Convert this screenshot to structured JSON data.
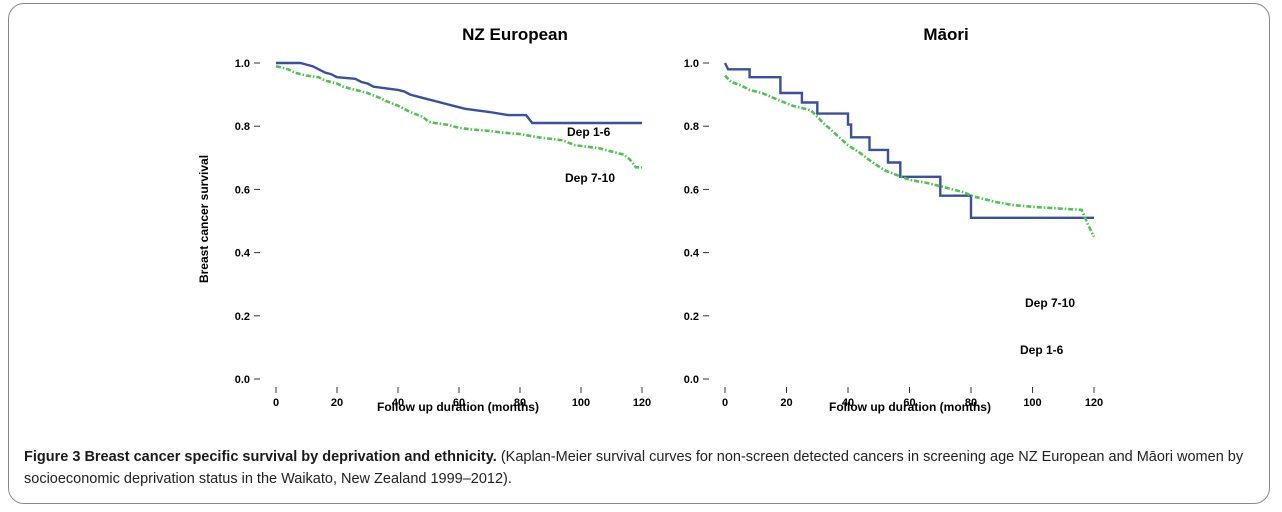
{
  "caption": {
    "label": "Figure 3",
    "title": "Breast cancer specific survival by deprivation and ethnicity.",
    "text": "(Kaplan-Meier survival curves for non-screen detected cancers in screening age NZ European and Māori women by socioeconomic deprivation status in the Waikato, New Zealand 1999–2012)."
  },
  "colors": {
    "dep_1_6": "#3a4fa0",
    "dep_7_10": "#4fc34f"
  },
  "chart_data": [
    {
      "type": "line",
      "title": "NZ European",
      "xlabel": "Follow up duration (months)",
      "ylabel": "Breast cancer survival",
      "xlim": [
        0,
        120
      ],
      "ylim": [
        0,
        1.0
      ],
      "xticks": [
        "0",
        "20",
        "40",
        "60",
        "80",
        "100",
        "120"
      ],
      "yticks": [
        "0.0",
        "0.2",
        "0.4",
        "0.6",
        "0.8",
        "1.0"
      ],
      "series": [
        {
          "name": "Dep 1-6",
          "style": "solid",
          "points": [
            [
              0,
              1.0
            ],
            [
              8,
              1.0
            ],
            [
              10,
              0.995
            ],
            [
              12,
              0.99
            ],
            [
              14,
              0.98
            ],
            [
              16,
              0.97
            ],
            [
              18,
              0.965
            ],
            [
              20,
              0.955
            ],
            [
              26,
              0.95
            ],
            [
              28,
              0.94
            ],
            [
              30,
              0.935
            ],
            [
              32,
              0.925
            ],
            [
              36,
              0.92
            ],
            [
              40,
              0.915
            ],
            [
              42,
              0.91
            ],
            [
              44,
              0.9
            ],
            [
              48,
              0.89
            ],
            [
              52,
              0.88
            ],
            [
              56,
              0.87
            ],
            [
              58,
              0.865
            ],
            [
              62,
              0.855
            ],
            [
              66,
              0.85
            ],
            [
              70,
              0.845
            ],
            [
              76,
              0.835
            ],
            [
              82,
              0.835
            ],
            [
              84,
              0.81
            ],
            [
              120,
              0.81
            ]
          ]
        },
        {
          "name": "Dep 7-10",
          "style": "dashed",
          "points": [
            [
              0,
              0.99
            ],
            [
              2,
              0.985
            ],
            [
              4,
              0.98
            ],
            [
              6,
              0.97
            ],
            [
              10,
              0.96
            ],
            [
              14,
              0.955
            ],
            [
              16,
              0.945
            ],
            [
              20,
              0.935
            ],
            [
              22,
              0.925
            ],
            [
              26,
              0.915
            ],
            [
              30,
              0.905
            ],
            [
              34,
              0.89
            ],
            [
              36,
              0.88
            ],
            [
              40,
              0.865
            ],
            [
              42,
              0.855
            ],
            [
              44,
              0.845
            ],
            [
              48,
              0.83
            ],
            [
              50,
              0.815
            ],
            [
              52,
              0.81
            ],
            [
              56,
              0.805
            ],
            [
              60,
              0.795
            ],
            [
              64,
              0.79
            ],
            [
              70,
              0.785
            ],
            [
              74,
              0.78
            ],
            [
              80,
              0.775
            ],
            [
              86,
              0.765
            ],
            [
              90,
              0.76
            ],
            [
              94,
              0.755
            ],
            [
              98,
              0.74
            ],
            [
              102,
              0.735
            ],
            [
              106,
              0.73
            ],
            [
              110,
              0.72
            ],
            [
              114,
              0.71
            ],
            [
              116,
              0.695
            ],
            [
              118,
              0.67
            ],
            [
              120,
              0.67
            ]
          ]
        }
      ]
    },
    {
      "type": "line",
      "title": "Māori",
      "xlabel": "Follow up duration (months)",
      "ylabel": "",
      "xlim": [
        0,
        120
      ],
      "ylim": [
        0,
        1.0
      ],
      "xticks": [
        "0",
        "20",
        "40",
        "60",
        "80",
        "100",
        "120"
      ],
      "yticks": [
        "0.0",
        "0.2",
        "0.4",
        "0.6",
        "0.8",
        "1.0"
      ],
      "series": [
        {
          "name": "Dep 1-6",
          "style": "solid",
          "points": [
            [
              0,
              1.0
            ],
            [
              1,
              0.98
            ],
            [
              8,
              0.98
            ],
            [
              8,
              0.955
            ],
            [
              18,
              0.955
            ],
            [
              18,
              0.905
            ],
            [
              25,
              0.905
            ],
            [
              25,
              0.875
            ],
            [
              30,
              0.875
            ],
            [
              30,
              0.84
            ],
            [
              40,
              0.84
            ],
            [
              40,
              0.805
            ],
            [
              41,
              0.805
            ],
            [
              41,
              0.765
            ],
            [
              47,
              0.765
            ],
            [
              47,
              0.725
            ],
            [
              53,
              0.725
            ],
            [
              53,
              0.685
            ],
            [
              57,
              0.685
            ],
            [
              57,
              0.64
            ],
            [
              70,
              0.64
            ],
            [
              70,
              0.58
            ],
            [
              80,
              0.58
            ],
            [
              80,
              0.51
            ],
            [
              120,
              0.51
            ]
          ]
        },
        {
          "name": "Dep 7-10",
          "style": "dashed",
          "points": [
            [
              0,
              0.96
            ],
            [
              2,
              0.94
            ],
            [
              5,
              0.93
            ],
            [
              8,
              0.915
            ],
            [
              12,
              0.905
            ],
            [
              18,
              0.88
            ],
            [
              22,
              0.865
            ],
            [
              28,
              0.85
            ],
            [
              32,
              0.81
            ],
            [
              36,
              0.775
            ],
            [
              40,
              0.74
            ],
            [
              44,
              0.715
            ],
            [
              48,
              0.685
            ],
            [
              52,
              0.66
            ],
            [
              56,
              0.645
            ],
            [
              60,
              0.63
            ],
            [
              66,
              0.62
            ],
            [
              72,
              0.605
            ],
            [
              78,
              0.59
            ],
            [
              80,
              0.58
            ],
            [
              84,
              0.57
            ],
            [
              88,
              0.56
            ],
            [
              94,
              0.55
            ],
            [
              100,
              0.545
            ],
            [
              108,
              0.54
            ],
            [
              116,
              0.535
            ],
            [
              118,
              0.49
            ],
            [
              120,
              0.45
            ]
          ]
        }
      ]
    }
  ]
}
